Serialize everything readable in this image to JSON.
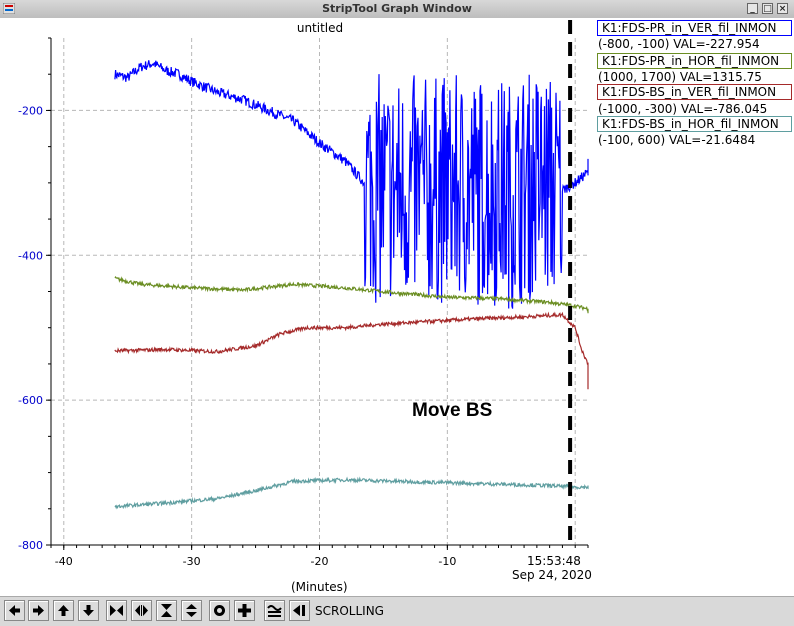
{
  "window": {
    "title": "StripTool Graph Window",
    "buttons": [
      "_",
      "□",
      "×"
    ]
  },
  "plot": {
    "title": "untitled",
    "annotation": "Move BS",
    "x_axis_label": "(Minutes)",
    "time_label": "15:53:48",
    "date_label": "Sep 24, 2020"
  },
  "legend": [
    {
      "name": "K1:FDS-PR_in_VER_fil_INMON",
      "range": "(-800, -100) VAL=-227.954",
      "color": "#0000ff"
    },
    {
      "name": "K1:FDS-PR_in_HOR_fil_INMON",
      "range": "(1000, 1700) VAL=1315.75",
      "color": "#6b8e23"
    },
    {
      "name": "K1:FDS-BS_in_VER_fil_INMON",
      "range": "(-1000, -300) VAL=-786.045",
      "color": "#a52a2a"
    },
    {
      "name": "K1:FDS-BS_in_HOR_fil_INMON",
      "range": "(-100, 600) VAL=-21.6484",
      "color": "#5f9ea0"
    }
  ],
  "toolbar": {
    "mode_label": "SCROLLING",
    "icons": [
      "pan-left-icon",
      "pan-right-icon",
      "pan-up-icon",
      "pan-down-icon",
      "zoom-in-x-icon",
      "zoom-out-x-icon",
      "zoom-in-y-icon",
      "zoom-out-y-icon",
      "auto-scale-icon",
      "reset-icon",
      "toggle-grid-icon",
      "last-value-icon"
    ]
  },
  "chart_data": {
    "type": "line",
    "title": "untitled",
    "xlabel": "(Minutes)",
    "ylabel": "",
    "xlim": [
      -41,
      1
    ],
    "ylim": [
      -800,
      -100
    ],
    "x_ticks": [
      -40,
      -30,
      -20,
      -10
    ],
    "y_ticks": [
      -200,
      -400,
      -600,
      -800
    ],
    "grid": true,
    "marker_line_x": -0.4,
    "series": [
      {
        "name": "K1:FDS-PR_in_VER_fil_INMON",
        "color": "#0000ff",
        "x": [
          -36,
          -35,
          -34,
          -33,
          -32,
          -31,
          -30,
          -28,
          -26,
          -24,
          -22,
          -20,
          -18,
          -16.5,
          -15,
          -13,
          -11,
          -9,
          -7,
          -5,
          -3,
          -1,
          0,
          1,
          2
        ],
        "y": [
          -150,
          -155,
          -140,
          -135,
          -145,
          -150,
          -160,
          -175,
          -185,
          -200,
          -215,
          -245,
          -270,
          -300,
          -310,
          -310,
          -310,
          -310,
          -310,
          -315,
          -300,
          -310,
          -300,
          -285,
          -270
        ],
        "noise_band": [
          [
            -16.5,
            -1.0,
            160
          ]
        ]
      },
      {
        "name": "K1:FDS-PR_in_HOR_fil_INMON",
        "color": "#6b8e23",
        "x": [
          -36,
          -34,
          -30,
          -26,
          -22,
          -18,
          -14,
          -10,
          -6,
          -2,
          0,
          2
        ],
        "y": [
          -432,
          -440,
          -445,
          -448,
          -440,
          -445,
          -452,
          -458,
          -460,
          -465,
          -470,
          -478
        ]
      },
      {
        "name": "K1:FDS-BS_in_VER_fil_INMON",
        "color": "#a52a2a",
        "x": [
          -36,
          -32,
          -28,
          -25,
          -23,
          -21,
          -18,
          -15,
          -12,
          -8,
          -4,
          -1,
          0,
          0.5,
          1,
          1.5,
          2
        ],
        "y": [
          -532,
          -530,
          -533,
          -525,
          -508,
          -500,
          -500,
          -495,
          -492,
          -488,
          -485,
          -482,
          -500,
          -530,
          -550,
          -580,
          -585
        ]
      },
      {
        "name": "K1:FDS-BS_in_HOR_fil_INMON",
        "color": "#5f9ea0",
        "x": [
          -36,
          -32,
          -28,
          -25,
          -22,
          -18,
          -14,
          -10,
          -6,
          -2,
          0,
          2
        ],
        "y": [
          -747,
          -742,
          -736,
          -725,
          -712,
          -710,
          -712,
          -714,
          -716,
          -718,
          -720,
          -720
        ]
      }
    ]
  }
}
